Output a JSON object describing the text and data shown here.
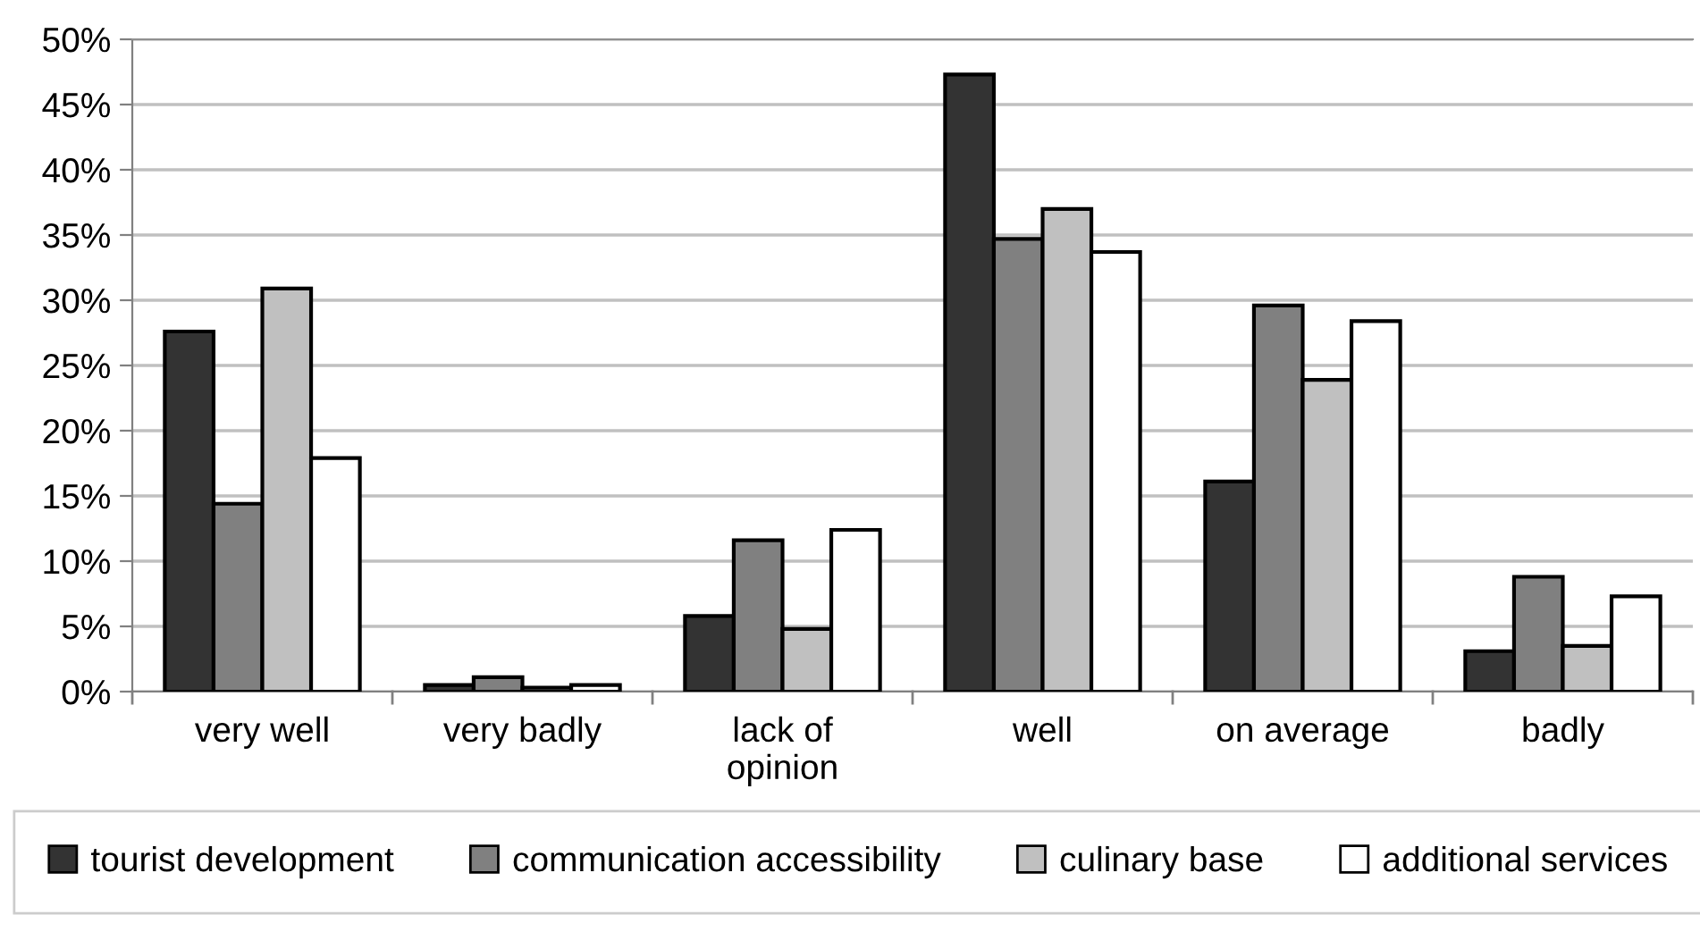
{
  "chart_data": {
    "type": "bar",
    "categories": [
      "very well",
      "very badly",
      "lack of\nopinion",
      "well",
      "on average",
      "badly"
    ],
    "series": [
      {
        "name": "tourist development",
        "color": "#333333",
        "values": [
          27.6,
          0.5,
          5.8,
          47.3,
          16.1,
          3.1
        ]
      },
      {
        "name": "communication accessibility",
        "color": "#808080",
        "values": [
          14.4,
          1.1,
          11.6,
          34.7,
          29.6,
          8.8
        ]
      },
      {
        "name": "culinary base",
        "color": "#c0c0c0",
        "values": [
          30.9,
          0.3,
          4.8,
          37.0,
          23.9,
          3.5
        ]
      },
      {
        "name": "additional services",
        "color": "#ffffff",
        "values": [
          17.9,
          0.5,
          12.4,
          33.7,
          28.4,
          7.3
        ]
      }
    ],
    "ylim": [
      0,
      50
    ],
    "yticks": [
      {
        "value": 0,
        "label": "0%"
      },
      {
        "value": 5,
        "label": "5%"
      },
      {
        "value": 10,
        "label": "10%"
      },
      {
        "value": 15,
        "label": "15%"
      },
      {
        "value": 20,
        "label": "20%"
      },
      {
        "value": 25,
        "label": "25%"
      },
      {
        "value": 30,
        "label": "30%"
      },
      {
        "value": 35,
        "label": "35%"
      },
      {
        "value": 40,
        "label": "40%"
      },
      {
        "value": 45,
        "label": "45%"
      },
      {
        "value": 50,
        "label": "50%"
      }
    ],
    "grid": "y",
    "legend": "bottom"
  }
}
